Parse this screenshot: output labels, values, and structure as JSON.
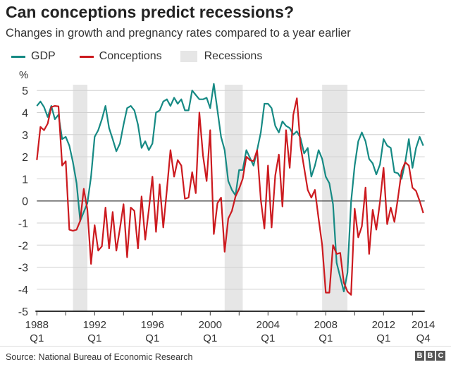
{
  "chart_data": {
    "type": "line",
    "title": "Can conceptions predict recessions?",
    "subtitle": "Changes in growth and pregnancy rates compared to a year earlier",
    "ylabel": "%",
    "ylim": [
      -5,
      5
    ],
    "yticks": [
      "5",
      "4",
      "3",
      "2",
      "1",
      "0",
      "-1",
      "-2",
      "-3",
      "-4",
      "-5"
    ],
    "x_range": [
      "1988 Q1",
      "2014 Q4"
    ],
    "x_frequency": "quarterly",
    "xtick_labels": [
      {
        "year": "1988",
        "quarter": "Q1"
      },
      {
        "year": "1992",
        "quarter": "Q1"
      },
      {
        "year": "1996",
        "quarter": "Q1"
      },
      {
        "year": "2000",
        "quarter": "Q1"
      },
      {
        "year": "2004",
        "quarter": "Q1"
      },
      {
        "year": "2008",
        "quarter": "Q1"
      },
      {
        "year": "2012",
        "quarter": "Q1"
      },
      {
        "year": "2014",
        "quarter": "Q4"
      }
    ],
    "grid": true,
    "legend_position": "top-left",
    "recessions": [
      [
        1990.5,
        1991.5
      ],
      [
        2001.0,
        2002.25
      ],
      [
        2007.75,
        2009.5
      ]
    ],
    "series": [
      {
        "name": "GDP",
        "color": "#168a84",
        "values": [
          4.3,
          4.5,
          4.25,
          3.8,
          4.3,
          3.7,
          3.9,
          2.8,
          2.9,
          2.5,
          1.75,
          0.8,
          -0.9,
          -0.5,
          -0.1,
          1.1,
          2.9,
          3.2,
          3.7,
          4.3,
          3.3,
          2.8,
          2.25,
          2.6,
          3.45,
          4.2,
          4.3,
          4.1,
          3.45,
          2.4,
          2.7,
          2.3,
          2.6,
          4.0,
          4.1,
          4.5,
          4.6,
          4.3,
          4.67,
          4.4,
          4.6,
          4.1,
          4.1,
          5.0,
          4.8,
          4.6,
          4.6,
          4.67,
          4.2,
          5.3,
          4.1,
          2.9,
          2.3,
          0.9,
          0.5,
          0.25,
          1.4,
          1.4,
          2.3,
          1.95,
          1.6,
          2.3,
          3.1,
          4.4,
          4.4,
          4.2,
          3.4,
          3.1,
          3.6,
          3.4,
          3.3,
          3.0,
          3.15,
          2.85,
          2.15,
          2.4,
          1.1,
          1.6,
          2.3,
          1.9,
          1.1,
          0.8,
          -0.15,
          -2.8,
          -3.45,
          -4.1,
          -3.25,
          -0.05,
          1.6,
          2.7,
          3.1,
          2.7,
          1.9,
          1.7,
          1.2,
          1.65,
          2.8,
          2.5,
          2.4,
          1.3,
          1.25,
          1.0,
          1.75,
          2.8,
          1.5,
          2.4,
          2.9,
          2.5
        ]
      },
      {
        "name": "Conceptions",
        "color": "#cc1a1f",
        "values": [
          1.85,
          3.35,
          3.2,
          3.5,
          4.25,
          4.3,
          4.28,
          1.6,
          1.8,
          -1.3,
          -1.35,
          -1.3,
          -0.9,
          0.55,
          -0.4,
          -2.85,
          -1.1,
          -2.25,
          -2.05,
          -0.3,
          -2.15,
          -0.5,
          -2.25,
          -1.25,
          -0.15,
          -2.55,
          -0.3,
          -0.45,
          -2.15,
          0.2,
          -1.75,
          -0.4,
          1.1,
          -1.4,
          0.75,
          -1.2,
          0.5,
          2.3,
          1.1,
          1.85,
          1.6,
          0.1,
          0.15,
          1.3,
          0.35,
          4.0,
          2.05,
          0.9,
          3.2,
          -1.5,
          -0.1,
          0.15,
          -2.3,
          -0.8,
          -0.45,
          0.2,
          0.55,
          1.0,
          2.0,
          1.85,
          1.8,
          2.3,
          0.05,
          -1.25,
          1.6,
          -1.2,
          1.15,
          2.1,
          -0.25,
          3.2,
          1.5,
          3.9,
          4.65,
          2.5,
          1.5,
          0.5,
          0.15,
          0.5,
          -0.8,
          -2.0,
          -4.15,
          -4.15,
          -2.0,
          -2.4,
          -2.35,
          -3.7,
          -4.1,
          -4.25,
          -0.35,
          -1.65,
          -1.15,
          0.6,
          -2.4,
          -0.4,
          -1.3,
          -0.05,
          1.5,
          -1.05,
          -0.3,
          -0.95,
          0.15,
          1.35,
          1.75,
          1.6,
          0.6,
          0.45,
          0.0,
          -0.55
        ]
      }
    ]
  },
  "legend": {
    "gdp_label": "GDP",
    "conceptions_label": "Conceptions",
    "recessions_label": "Recessions",
    "recession_color": "#e6e6e6"
  },
  "footer": {
    "source": "Source: National Bureau of Economic Research",
    "logo": "BBC"
  }
}
